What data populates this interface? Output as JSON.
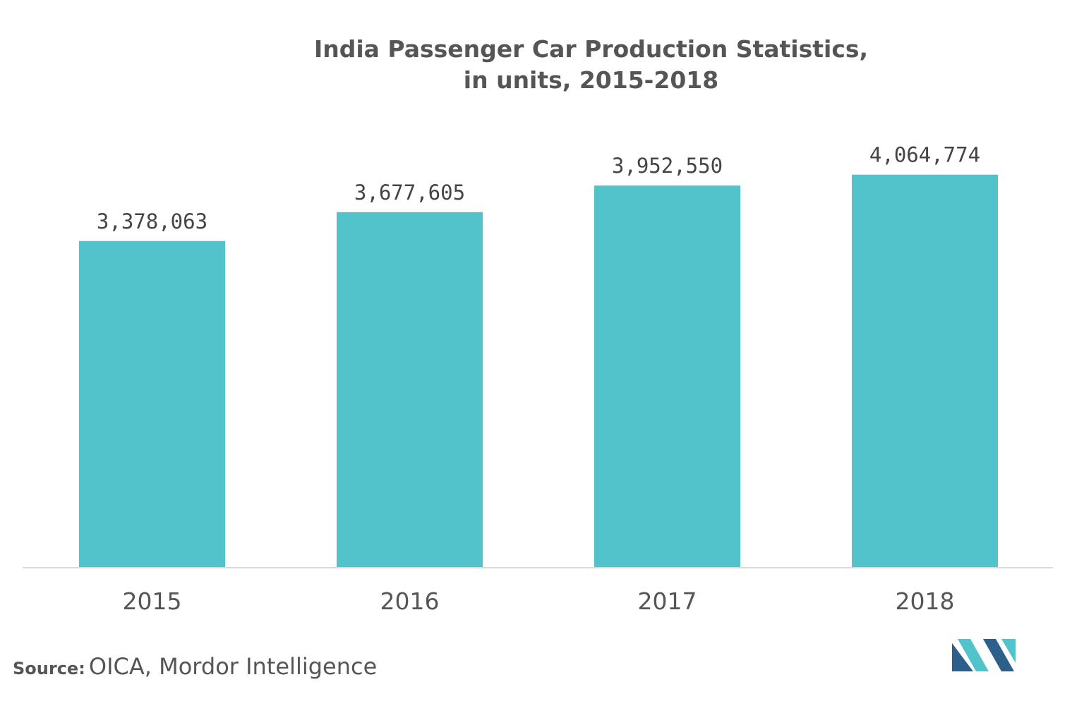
{
  "chart_data": {
    "type": "bar",
    "title": "India Passenger Car Production Statistics, in units, 2015-2018",
    "title_lines": [
      "India Passenger Car Production Statistics,",
      "in units, 2015-2018"
    ],
    "categories": [
      "2015",
      "2016",
      "2017",
      "2018"
    ],
    "values": [
      3378063,
      3677605,
      3952550,
      4064774
    ],
    "value_labels": [
      "3,378,063",
      "3,677,605",
      "3,952,550",
      "4,064,774"
    ],
    "xlabel": "",
    "ylabel": "",
    "ylim": [
      0,
      4850000
    ],
    "grid": false,
    "legend": "none",
    "bar_color": "#52C3CA"
  },
  "source": {
    "label": "Source:",
    "text": "OICA, Mordor Intelligence"
  },
  "colors": {
    "text": "#555555",
    "value_text": "#444444",
    "axis": "#d9d9d9",
    "logo_dark": "#2D5F8C",
    "logo_teal": "#52C3CA"
  }
}
